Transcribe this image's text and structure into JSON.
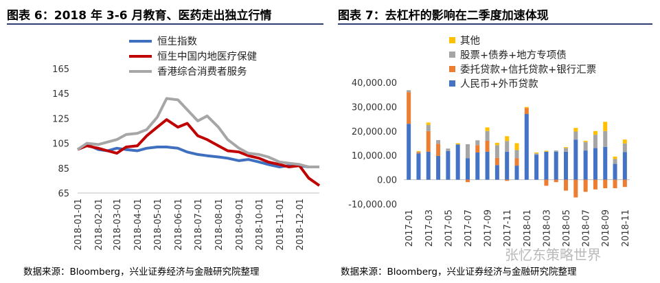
{
  "left": {
    "title": "图表 6：2018 年 3-6 月教育、医药走出独立行情",
    "source": "数据来源：Bloomberg，兴业证券经济与金融研究院整理"
  },
  "right": {
    "title": "图表 7：去杠杆的影响在二季度加速体现",
    "source": "数据来源：Bloomberg，兴业证券经济与金融研究院整理"
  },
  "watermark": "张忆东策略世界",
  "chart_data": [
    {
      "type": "line",
      "title": "图表 6：2018 年 3-6 月教育、医药走出独立行情",
      "ylim": [
        65,
        165
      ],
      "y_ticks": [
        65,
        85,
        105,
        125,
        145,
        165
      ],
      "x_ticks": [
        "2018-01-01",
        "2018-02-01",
        "2018-03-01",
        "2018-04-01",
        "2018-05-01",
        "2018-06-01",
        "2018-07-01",
        "2018-08-01",
        "2018-09-01",
        "2018-10-01",
        "2018-11-01",
        "2018-12-01"
      ],
      "x": [
        "2018-01-01",
        "2018-01-15",
        "2018-02-01",
        "2018-02-15",
        "2018-03-01",
        "2018-03-15",
        "2018-04-01",
        "2018-04-15",
        "2018-05-01",
        "2018-05-15",
        "2018-06-01",
        "2018-06-15",
        "2018-07-01",
        "2018-07-15",
        "2018-08-01",
        "2018-08-15",
        "2018-09-01",
        "2018-09-15",
        "2018-10-01",
        "2018-10-15",
        "2018-11-01",
        "2018-11-15",
        "2018-12-01",
        "2018-12-15",
        "2018-12-31"
      ],
      "series": [
        {
          "name": "恒生指数",
          "color": "#3f6fbf",
          "values": [
            100,
            104,
            100,
            99,
            101,
            100,
            99,
            101,
            102,
            102,
            101,
            98,
            96,
            95,
            94,
            93,
            91,
            92,
            90,
            88,
            86,
            87,
            87,
            86,
            86
          ]
        },
        {
          "name": "恒生中国内地医疗保健",
          "color": "#c00000",
          "values": [
            100,
            103,
            101,
            99,
            97,
            102,
            103,
            111,
            118,
            124,
            118,
            121,
            111,
            108,
            103,
            99,
            98,
            95,
            93,
            90,
            88,
            86,
            87,
            77,
            71
          ]
        },
        {
          "name": "香港综合消费者服务",
          "color": "#a6a6a6",
          "values": [
            100,
            105,
            104,
            106,
            108,
            112,
            113,
            116,
            126,
            141,
            140,
            132,
            123,
            127,
            118,
            108,
            101,
            97,
            96,
            94,
            90,
            89,
            88,
            86,
            86
          ]
        }
      ]
    },
    {
      "type": "bar",
      "stacked": true,
      "title": "图表 7：去杠杆的影响在二季度加速体现",
      "ylim": [
        -10000,
        40000
      ],
      "y_ticks": [
        "-10,000.00",
        "0.00",
        "10,000.00",
        "20,000.00",
        "30,000.00",
        "40,000.00"
      ],
      "categories": [
        "2017-01",
        "2017-02",
        "2017-03",
        "2017-04",
        "2017-05",
        "2017-06",
        "2017-07",
        "2017-08",
        "2017-09",
        "2017-10",
        "2017-11",
        "2017-12",
        "2018-01",
        "2018-02",
        "2018-03",
        "2018-04",
        "2018-05",
        "2018-06",
        "2018-07",
        "2018-08",
        "2018-09",
        "2018-10",
        "2018-11"
      ],
      "x_tick_labels": [
        "2017-01",
        "2017-03",
        "2017-05",
        "2017-07",
        "2017-09",
        "2017-11",
        "2018-01",
        "2018-03",
        "2018-05",
        "2018-07",
        "2018-09",
        "2018-11"
      ],
      "series": [
        {
          "name": "人民币+外币贷款",
          "color": "#4472c4",
          "values": [
            23000,
            10800,
            11500,
            9800,
            11800,
            14500,
            8800,
            11200,
            11500,
            6000,
            11500,
            5800,
            27000,
            10300,
            11500,
            11500,
            11500,
            16500,
            12000,
            13000,
            13500,
            6500,
            11400
          ]
        },
        {
          "name": "委托贷款+信托贷款+银行汇票",
          "color": "#ed7d31",
          "values": [
            13000,
            500,
            8500,
            5000,
            0,
            0,
            -1000,
            3000,
            4500,
            3000,
            -500,
            3000,
            2500,
            0,
            -2500,
            -1000,
            -4500,
            -7300,
            -5000,
            -4000,
            -3500,
            -3500,
            -3000
          ]
        },
        {
          "name": "股票+债券+地方专项债",
          "color": "#a5a5a5",
          "values": [
            800,
            200,
            2500,
            1500,
            1000,
            0,
            5800,
            2000,
            4000,
            5200,
            4400,
            3400,
            0,
            500,
            0,
            500,
            1500,
            3300,
            3500,
            5500,
            6500,
            2000,
            3500
          ]
        },
        {
          "name": "其他",
          "color": "#ffc000",
          "values": [
            0,
            300,
            1000,
            0,
            0,
            500,
            0,
            0,
            1500,
            1000,
            2000,
            2800,
            400,
            400,
            400,
            0,
            400,
            1500,
            500,
            1500,
            3800,
            1000,
            1600
          ]
        }
      ]
    }
  ]
}
